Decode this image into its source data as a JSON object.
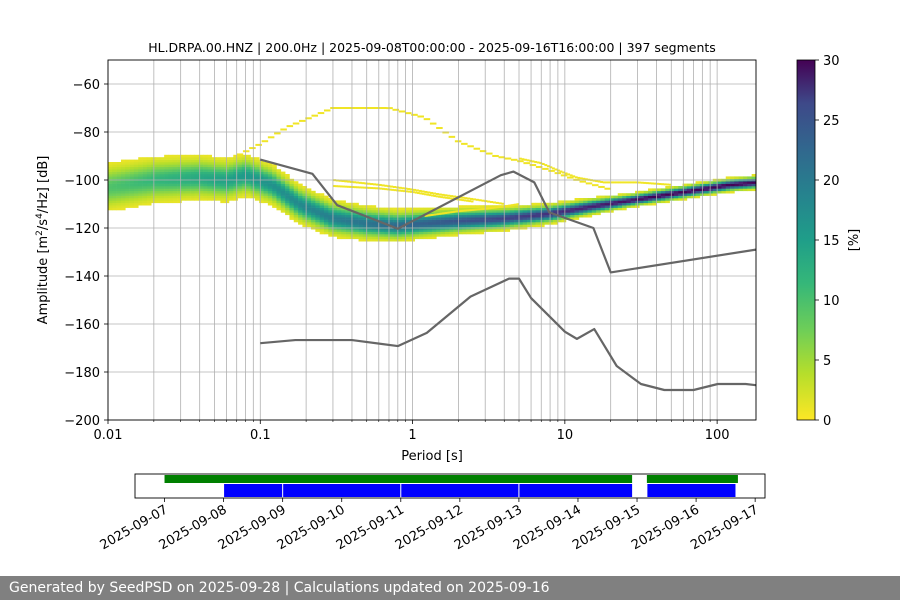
{
  "chart_data": [
    {
      "type": "heatmap",
      "title": "HL.DRPA.00.HNZ | 200.0Hz | 2025-09-08T00:00:00 - 2025-09-16T16:00:00 | 397 segments",
      "xlabel": "Period [s]",
      "ylabel_parts": {
        "main": "Amplitude [m",
        "sup1": "2",
        "mid": "/s",
        "sup2": "4",
        "end": "/Hz] [dB]"
      },
      "xscale": "log",
      "xlim": [
        0.01,
        180
      ],
      "ylim": [
        -200,
        -50
      ],
      "x_ticks": [
        {
          "value": 0.01,
          "label": "0.01"
        },
        {
          "value": 0.1,
          "label": "0.1"
        },
        {
          "value": 1,
          "label": "1"
        },
        {
          "value": 10,
          "label": "10"
        },
        {
          "value": 100,
          "label": "100"
        }
      ],
      "y_ticks": [
        {
          "value": -60,
          "label": "−60"
        },
        {
          "value": -80,
          "label": "−80"
        },
        {
          "value": -100,
          "label": "−100"
        },
        {
          "value": -120,
          "label": "−120"
        },
        {
          "value": -140,
          "label": "−140"
        },
        {
          "value": -160,
          "label": "−160"
        },
        {
          "value": -180,
          "label": "−180"
        },
        {
          "value": -200,
          "label": "−200"
        }
      ],
      "grid": "vertical-log",
      "colorbar": {
        "label": "[%]",
        "range": [
          0,
          30
        ],
        "ticks": [
          {
            "value": 0,
            "label": "0"
          },
          {
            "value": 5,
            "label": "5"
          },
          {
            "value": 10,
            "label": "10"
          },
          {
            "value": 15,
            "label": "15"
          },
          {
            "value": 20,
            "label": "20"
          },
          {
            "value": 25,
            "label": "25"
          },
          {
            "value": 30,
            "label": "30"
          }
        ],
        "colormap": "viridis_r"
      },
      "ridge": {
        "x": [
          0.01,
          0.02,
          0.04,
          0.06,
          0.08,
          0.12,
          0.18,
          0.3,
          0.5,
          0.8,
          1.2,
          2,
          4,
          8,
          15,
          30,
          60,
          120,
          180
        ],
        "y": [
          -103,
          -100,
          -99,
          -100,
          -98,
          -102,
          -110,
          -116,
          -118,
          -119,
          -118,
          -117,
          -116,
          -114,
          -111,
          -108,
          -105,
          -102,
          -101
        ]
      },
      "lines": [
        {
          "role": "high-noise-model",
          "x": [
            0.1,
            0.22,
            0.32,
            0.8,
            3.8,
            4.6,
            6.3,
            7.9,
            15.4,
            20,
            180
          ],
          "y": [
            -91.5,
            -97.4,
            -110.5,
            -120.3,
            -98,
            -96.5,
            -101,
            -113.5,
            -120,
            -138.5,
            -129
          ]
        },
        {
          "role": "low-noise-model",
          "x": [
            0.1,
            0.17,
            0.4,
            0.8,
            1.24,
            2.4,
            4.3,
            5,
            6,
            10,
            12,
            15.6,
            21.9,
            31.6,
            45,
            70,
            101,
            154,
            180
          ],
          "y": [
            -168,
            -166.7,
            -166.7,
            -169.2,
            -163.7,
            -148.6,
            -141.1,
            -141.1,
            -149.2,
            -163.2,
            -166.2,
            -162.1,
            -177.5,
            -185,
            -187.5,
            -187.5,
            -185,
            -185,
            -185.5
          ]
        }
      ],
      "sparse_traces": [
        {
          "x": [
            0.07,
            0.1,
            0.15,
            0.3,
            0.7,
            1.2,
            2,
            3.5,
            5,
            8,
            12,
            20
          ],
          "y": [
            -90,
            -85,
            -78,
            -70,
            -70,
            -74,
            -84,
            -90,
            -92,
            -96,
            -100,
            -104
          ]
        },
        {
          "x": [
            0.3,
            0.6,
            1,
            1.5,
            2.5,
            4
          ],
          "y": [
            -100,
            -102,
            -104,
            -106,
            -108,
            -110
          ]
        },
        {
          "x": [
            0.3,
            0.6,
            1,
            1.5,
            2.5
          ],
          "y": [
            -102.5,
            -103.5,
            -105,
            -107,
            -109
          ]
        },
        {
          "x": [
            5,
            7,
            9,
            12,
            18,
            30,
            50
          ],
          "y": [
            -91,
            -93,
            -96,
            -99,
            -101,
            -101,
            -102
          ]
        },
        {
          "x": [
            1.2,
            2,
            3,
            4,
            5
          ],
          "y": [
            -115,
            -113,
            -112,
            -111,
            -110
          ]
        }
      ]
    },
    {
      "type": "timeline",
      "x_ticks": [
        {
          "value": "2025-09-07",
          "label": "2025-09-07"
        },
        {
          "value": "2025-09-08",
          "label": "2025-09-08"
        },
        {
          "value": "2025-09-09",
          "label": "2025-09-09"
        },
        {
          "value": "2025-09-10",
          "label": "2025-09-10"
        },
        {
          "value": "2025-09-11",
          "label": "2025-09-11"
        },
        {
          "value": "2025-09-12",
          "label": "2025-09-12"
        },
        {
          "value": "2025-09-13",
          "label": "2025-09-13"
        },
        {
          "value": "2025-09-14",
          "label": "2025-09-14"
        },
        {
          "value": "2025-09-15",
          "label": "2025-09-15"
        },
        {
          "value": "2025-09-16",
          "label": "2025-09-16"
        },
        {
          "value": "2025-09-17",
          "label": "2025-09-17"
        }
      ],
      "xlim": [
        "2025-09-06T12:00:00",
        "2025-09-17T04:00:00"
      ],
      "data_availability": [
        {
          "start": "2025-09-07T00:00:00",
          "end": "2025-09-14T22:00:00"
        },
        {
          "start": "2025-09-15T04:00:00",
          "end": "2025-09-16T17:00:00"
        }
      ],
      "psd_segments": [
        {
          "start": "2025-09-08T00:00:00",
          "end": "2025-09-09T00:00:00"
        },
        {
          "start": "2025-09-09T00:00:00",
          "end": "2025-09-11T00:00:00"
        },
        {
          "start": "2025-09-11T00:00:00",
          "end": "2025-09-13T00:00:00"
        },
        {
          "start": "2025-09-13T00:00:00",
          "end": "2025-09-14T22:00:00"
        },
        {
          "start": "2025-09-15T04:00:00",
          "end": "2025-09-16T16:00:00"
        }
      ],
      "colors": {
        "availability": "#008000",
        "segments": "#0000ff"
      }
    }
  ],
  "colors": {
    "noise_model": "#666666",
    "grid": "#b0b0b0",
    "footer_bg": "#808080"
  },
  "footer": {
    "text": "Generated by SeedPSD on 2025-09-28 | Calculations updated on 2025-09-16"
  }
}
